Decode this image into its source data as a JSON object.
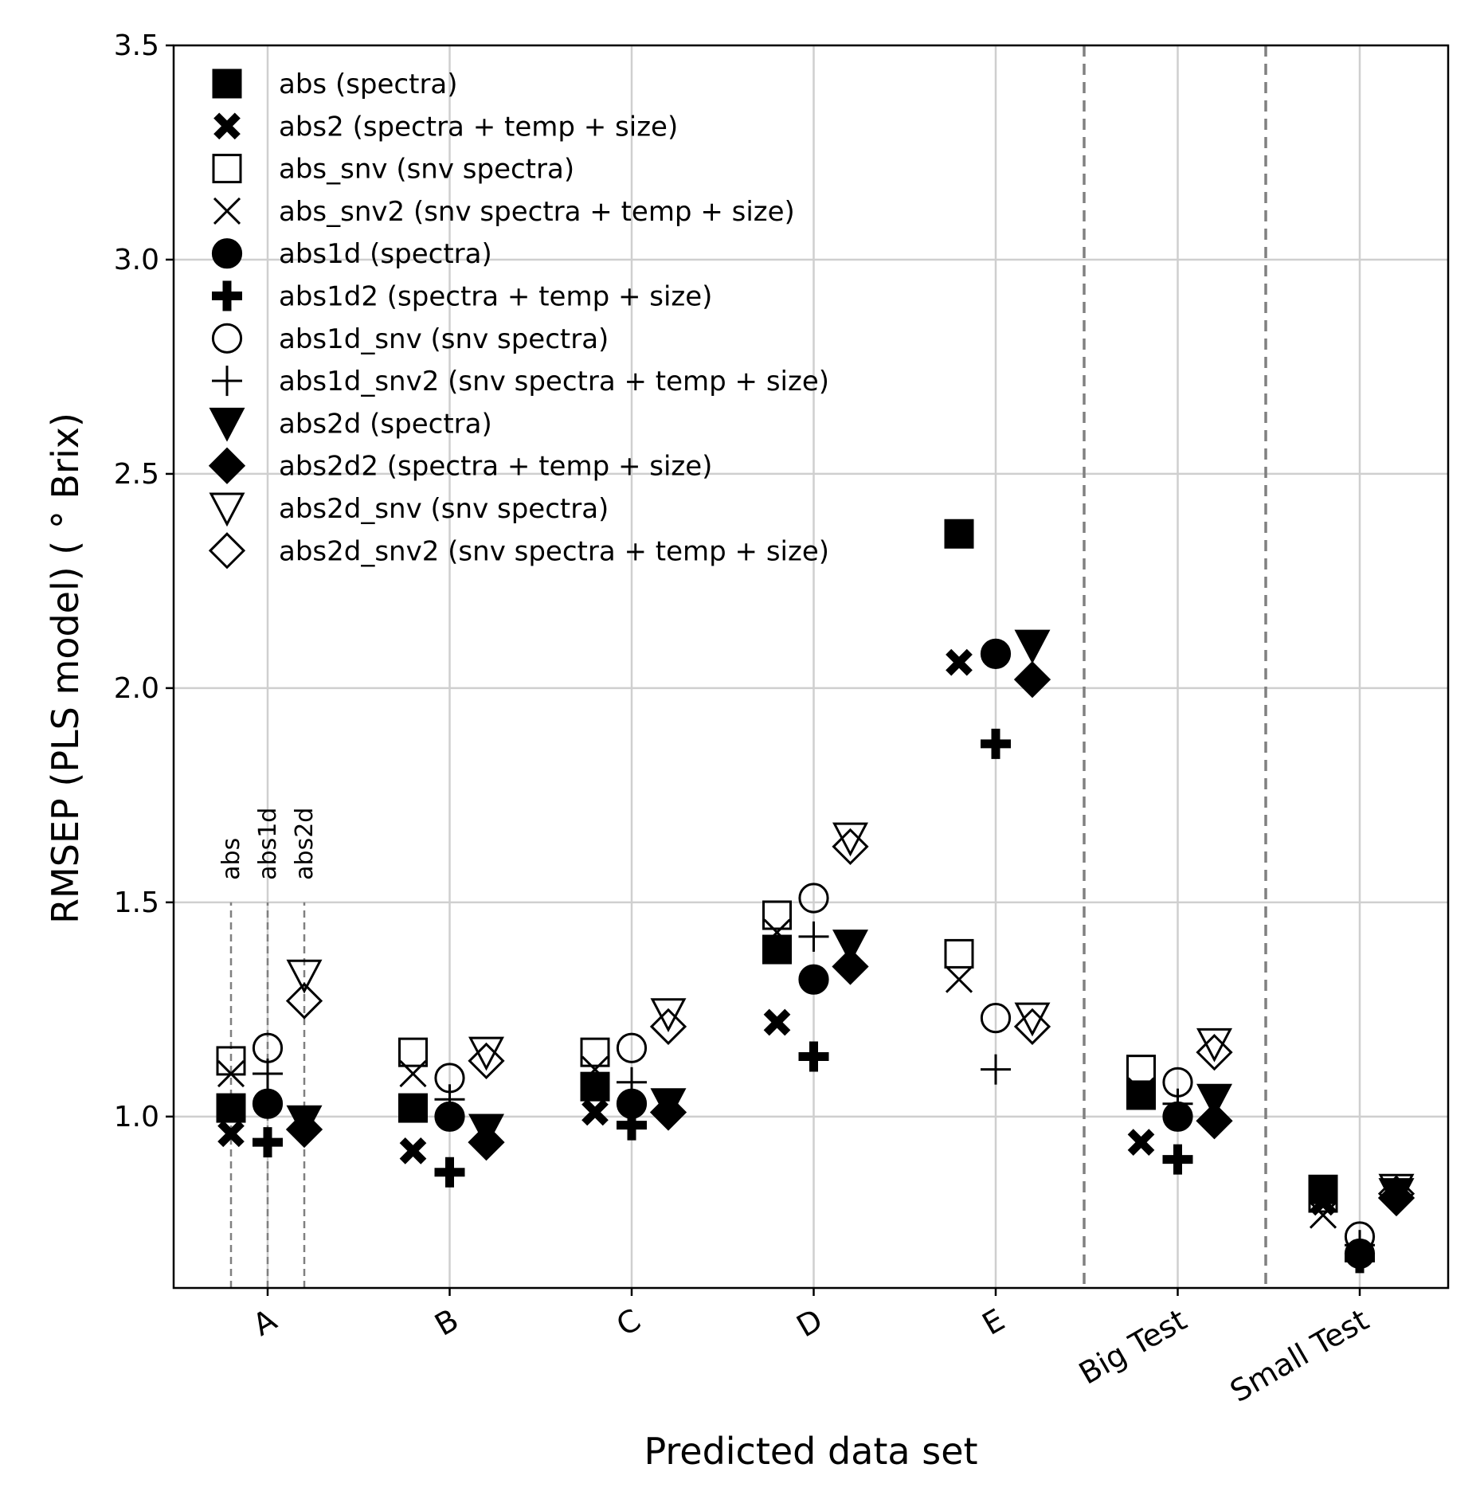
{
  "chart_data": {
    "type": "scatter",
    "xlabel": "Predicted data set",
    "ylabel": "RMSEP (PLS model) ( ° Brix)",
    "ylim": [
      0.6,
      3.5
    ],
    "yticks": [
      "1.0",
      "1.5",
      "2.0",
      "2.5",
      "3.0",
      "3.5"
    ],
    "categories": [
      "A",
      "B",
      "C",
      "D",
      "E",
      "Big Test",
      "Small Test"
    ],
    "grid": true,
    "legend_position": "top-left",
    "group_labels": [
      "abs",
      "abs1d",
      "abs2d"
    ],
    "series": [
      {
        "name": "abs (spectra)",
        "marker": "square-filled",
        "group": 0,
        "values": [
          1.02,
          1.02,
          1.07,
          1.39,
          2.36,
          1.05,
          0.83
        ]
      },
      {
        "name": "abs2 (spectra + temp + size)",
        "marker": "x-filled",
        "group": 0,
        "values": [
          0.96,
          0.92,
          1.01,
          1.22,
          2.06,
          0.94,
          0.8
        ]
      },
      {
        "name": "abs_snv (snv spectra)",
        "marker": "square-open",
        "group": 0,
        "values": [
          1.13,
          1.15,
          1.15,
          1.47,
          1.38,
          1.11,
          0.81
        ]
      },
      {
        "name": "abs_snv2 (snv spectra + temp + size)",
        "marker": "x-thin",
        "group": 0,
        "values": [
          1.1,
          1.1,
          1.11,
          1.43,
          1.32,
          1.06,
          0.77
        ]
      },
      {
        "name": "abs1d (spectra)",
        "marker": "circle-filled",
        "group": 1,
        "values": [
          1.03,
          1.0,
          1.03,
          1.32,
          2.08,
          1.0,
          0.68
        ]
      },
      {
        "name": "abs1d2 (spectra + temp + size)",
        "marker": "plus-filled",
        "group": 1,
        "values": [
          0.94,
          0.87,
          0.98,
          1.14,
          1.87,
          0.9,
          0.67
        ]
      },
      {
        "name": "abs1d_snv (snv spectra)",
        "marker": "circle-open",
        "group": 1,
        "values": [
          1.16,
          1.09,
          1.16,
          1.51,
          1.23,
          1.08,
          0.72
        ]
      },
      {
        "name": "abs1d_snv2 (snv spectra + temp + size)",
        "marker": "plus-thin",
        "group": 1,
        "values": [
          1.1,
          1.04,
          1.08,
          1.42,
          1.11,
          1.03,
          0.7
        ]
      },
      {
        "name": "abs2d (spectra)",
        "marker": "triangle-down-filled",
        "group": 2,
        "values": [
          0.99,
          0.97,
          1.03,
          1.4,
          2.1,
          1.04,
          0.82
        ]
      },
      {
        "name": "abs2d2 (spectra + temp + size)",
        "marker": "diamond-filled",
        "group": 2,
        "values": [
          0.97,
          0.94,
          1.01,
          1.35,
          2.02,
          0.99,
          0.81
        ]
      },
      {
        "name": "abs2d_snv (snv spectra)",
        "marker": "triangle-down-open",
        "group": 2,
        "values": [
          1.33,
          1.15,
          1.24,
          1.65,
          1.23,
          1.17,
          0.83
        ]
      },
      {
        "name": "abs2d_snv2 (snv spectra + temp + size)",
        "marker": "diamond-open",
        "group": 2,
        "values": [
          1.27,
          1.13,
          1.21,
          1.63,
          1.21,
          1.15,
          0.82
        ]
      }
    ]
  }
}
